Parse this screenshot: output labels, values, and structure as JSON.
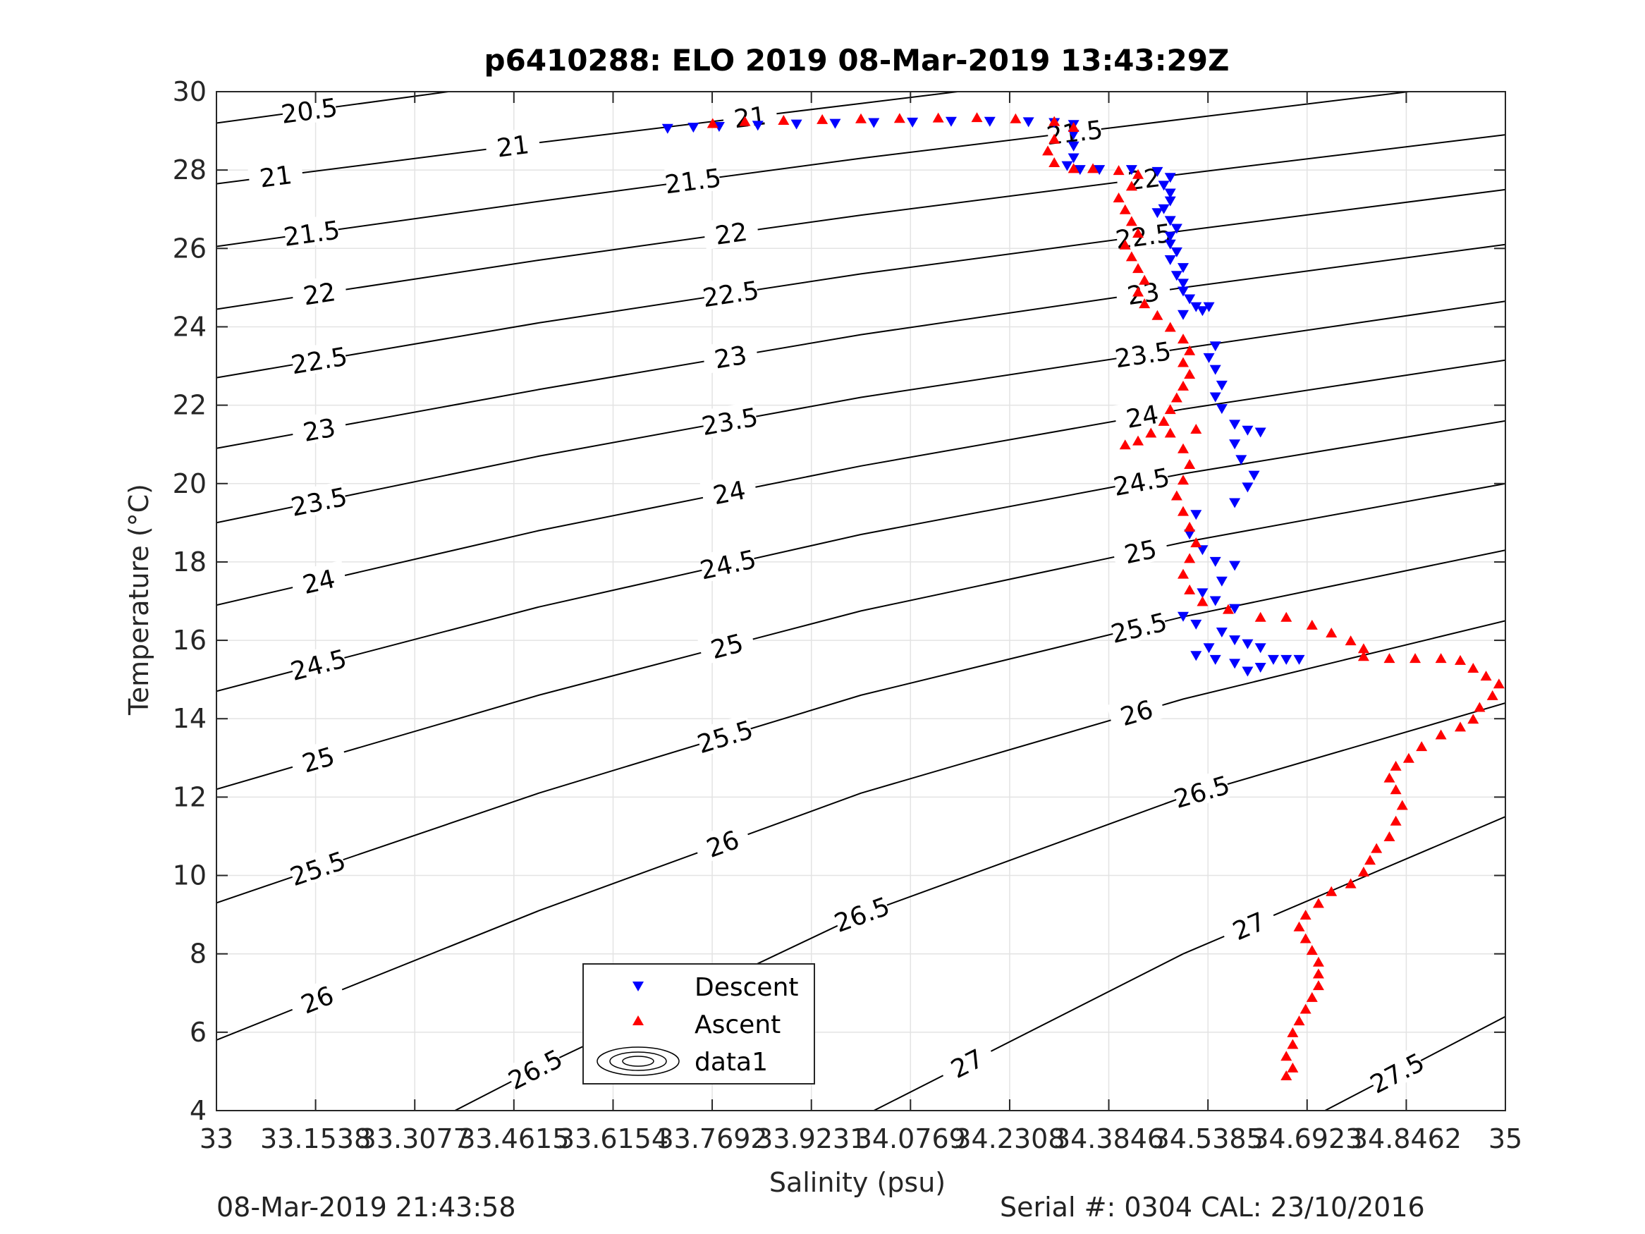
{
  "chart_data": {
    "type": "scatter",
    "title": "p6410288: ELO 2019 08-Mar-2019 13:43:29Z",
    "xlabel": "Salinity (psu)",
    "ylabel": "Temperature (°C)",
    "xlim": [
      33,
      35
    ],
    "ylim": [
      4,
      30
    ],
    "grid": true,
    "legend_position": "bottom-center",
    "x_ticks": [
      33,
      33.1538,
      33.3077,
      33.4615,
      33.6154,
      33.7692,
      33.9231,
      34.0769,
      34.2308,
      34.3846,
      34.5385,
      34.6923,
      34.8462,
      35
    ],
    "x_tick_labels": [
      "33",
      "33.1538",
      "33.3077",
      "33.4615",
      "33.6154",
      "33.7692",
      "33.9231",
      "34.0769",
      "34.2308",
      "34.3846",
      "34.5385",
      "34.6923",
      "34.8462",
      "35"
    ],
    "y_ticks": [
      4,
      6,
      8,
      10,
      12,
      14,
      16,
      18,
      20,
      22,
      24,
      26,
      28,
      30
    ],
    "y_tick_labels": [
      "4",
      "6",
      "8",
      "10",
      "12",
      "14",
      "16",
      "18",
      "20",
      "22",
      "24",
      "26",
      "28",
      "30"
    ],
    "legend": [
      {
        "label": "Descent",
        "marker": "triangle-down",
        "color": "#0000ff"
      },
      {
        "label": "Ascent",
        "marker": "triangle-up",
        "color": "#ff0000"
      },
      {
        "label": "data1",
        "marker": "contour",
        "color": "#000000"
      }
    ],
    "contour_levels": [
      {
        "label": "20.5",
        "points": [
          [
            33,
            29.2
          ],
          [
            33.36,
            30
          ]
        ]
      },
      {
        "label": "21",
        "points": [
          [
            33,
            27.65
          ],
          [
            33.5,
            28.7
          ],
          [
            34,
            29.7
          ],
          [
            34.15,
            30
          ]
        ]
      },
      {
        "label": "21.5",
        "points": [
          [
            33,
            26.05
          ],
          [
            33.5,
            27.2
          ],
          [
            34,
            28.3
          ],
          [
            34.5,
            29.3
          ],
          [
            34.85,
            30
          ]
        ]
      },
      {
        "label": "22",
        "points": [
          [
            33,
            24.45
          ],
          [
            33.5,
            25.7
          ],
          [
            34,
            26.85
          ],
          [
            34.5,
            27.9
          ],
          [
            35,
            28.9
          ]
        ]
      },
      {
        "label": "22.5",
        "points": [
          [
            33,
            22.7
          ],
          [
            33.5,
            24.1
          ],
          [
            34,
            25.35
          ],
          [
            34.5,
            26.45
          ],
          [
            35,
            27.5
          ]
        ]
      },
      {
        "label": "23",
        "points": [
          [
            33,
            20.9
          ],
          [
            33.5,
            22.4
          ],
          [
            34,
            23.8
          ],
          [
            34.5,
            25.0
          ],
          [
            35,
            26.1
          ]
        ]
      },
      {
        "label": "23.5",
        "points": [
          [
            33,
            19.0
          ],
          [
            33.5,
            20.7
          ],
          [
            34,
            22.2
          ],
          [
            34.5,
            23.45
          ],
          [
            35,
            24.65
          ]
        ]
      },
      {
        "label": "24",
        "points": [
          [
            33,
            16.9
          ],
          [
            33.5,
            18.8
          ],
          [
            34,
            20.45
          ],
          [
            34.5,
            21.9
          ],
          [
            35,
            23.15
          ]
        ]
      },
      {
        "label": "24.5",
        "points": [
          [
            33,
            14.7
          ],
          [
            33.5,
            16.85
          ],
          [
            34,
            18.7
          ],
          [
            34.5,
            20.25
          ],
          [
            35,
            21.6
          ]
        ]
      },
      {
        "label": "25",
        "points": [
          [
            33,
            12.2
          ],
          [
            33.5,
            14.6
          ],
          [
            34,
            16.75
          ],
          [
            34.5,
            18.5
          ],
          [
            35,
            20.0
          ]
        ]
      },
      {
        "label": "25.5",
        "points": [
          [
            33,
            9.3
          ],
          [
            33.5,
            12.1
          ],
          [
            34,
            14.6
          ],
          [
            34.5,
            16.6
          ],
          [
            35,
            18.3
          ]
        ]
      },
      {
        "label": "26",
        "points": [
          [
            33,
            5.8
          ],
          [
            33.5,
            9.1
          ],
          [
            34,
            12.1
          ],
          [
            34.5,
            14.5
          ],
          [
            35,
            16.5
          ]
        ]
      },
      {
        "label": "26.5",
        "points": [
          [
            33.37,
            4
          ],
          [
            33.5,
            5.1
          ],
          [
            34,
            9.0
          ],
          [
            34.5,
            12.0
          ],
          [
            35,
            14.4
          ]
        ]
      },
      {
        "label": "27",
        "points": [
          [
            34.02,
            4
          ],
          [
            34.5,
            8.0
          ],
          [
            35,
            11.5
          ]
        ]
      },
      {
        "label": "27.5",
        "points": [
          [
            34.72,
            4
          ],
          [
            35,
            6.4
          ]
        ]
      }
    ],
    "series": [
      {
        "name": "Descent",
        "marker": "triangle-down",
        "color": "#0000ff",
        "points": [
          [
            33.7,
            29.05
          ],
          [
            33.74,
            29.08
          ],
          [
            33.78,
            29.1
          ],
          [
            33.84,
            29.13
          ],
          [
            33.9,
            29.16
          ],
          [
            33.96,
            29.18
          ],
          [
            34.02,
            29.2
          ],
          [
            34.08,
            29.21
          ],
          [
            34.14,
            29.23
          ],
          [
            34.2,
            29.23
          ],
          [
            34.26,
            29.22
          ],
          [
            34.3,
            29.2
          ],
          [
            34.33,
            29.15
          ],
          [
            34.33,
            28.9
          ],
          [
            34.33,
            28.6
          ],
          [
            34.33,
            28.3
          ],
          [
            34.32,
            28.1
          ],
          [
            34.34,
            28.0
          ],
          [
            34.37,
            28.0
          ],
          [
            34.42,
            28.0
          ],
          [
            34.46,
            27.95
          ],
          [
            34.48,
            27.8
          ],
          [
            34.47,
            27.6
          ],
          [
            34.48,
            27.4
          ],
          [
            34.48,
            27.2
          ],
          [
            34.47,
            27.0
          ],
          [
            34.46,
            26.9
          ],
          [
            34.48,
            26.7
          ],
          [
            34.49,
            26.5
          ],
          [
            34.48,
            26.3
          ],
          [
            34.48,
            26.1
          ],
          [
            34.49,
            25.9
          ],
          [
            34.48,
            25.7
          ],
          [
            34.5,
            25.5
          ],
          [
            34.49,
            25.3
          ],
          [
            34.5,
            25.1
          ],
          [
            34.5,
            24.9
          ],
          [
            34.51,
            24.7
          ],
          [
            34.52,
            24.5
          ],
          [
            34.5,
            24.3
          ],
          [
            34.53,
            24.4
          ],
          [
            34.54,
            24.5
          ],
          [
            34.55,
            23.5
          ],
          [
            34.54,
            23.2
          ],
          [
            34.55,
            22.9
          ],
          [
            34.56,
            22.5
          ],
          [
            34.55,
            22.2
          ],
          [
            34.56,
            21.9
          ],
          [
            34.58,
            21.5
          ],
          [
            34.6,
            21.35
          ],
          [
            34.62,
            21.3
          ],
          [
            34.58,
            21.0
          ],
          [
            34.59,
            20.6
          ],
          [
            34.61,
            20.2
          ],
          [
            34.6,
            19.9
          ],
          [
            34.58,
            19.5
          ],
          [
            34.52,
            19.2
          ],
          [
            34.51,
            18.7
          ],
          [
            34.53,
            18.3
          ],
          [
            34.55,
            18.0
          ],
          [
            34.58,
            17.9
          ],
          [
            34.56,
            17.5
          ],
          [
            34.53,
            17.2
          ],
          [
            34.55,
            17.0
          ],
          [
            34.58,
            16.8
          ],
          [
            34.5,
            16.6
          ],
          [
            34.52,
            16.4
          ],
          [
            34.56,
            16.2
          ],
          [
            34.58,
            16.0
          ],
          [
            34.6,
            15.9
          ],
          [
            34.62,
            15.8
          ],
          [
            34.54,
            15.8
          ],
          [
            34.52,
            15.6
          ],
          [
            34.55,
            15.5
          ],
          [
            34.58,
            15.4
          ],
          [
            34.6,
            15.2
          ],
          [
            34.62,
            15.3
          ],
          [
            34.64,
            15.5
          ],
          [
            34.66,
            15.5
          ],
          [
            34.68,
            15.5
          ]
        ]
      },
      {
        "name": "Ascent",
        "marker": "triangle-up",
        "color": "#ff0000",
        "points": [
          [
            33.77,
            29.2
          ],
          [
            33.82,
            29.25
          ],
          [
            33.88,
            29.28
          ],
          [
            33.94,
            29.3
          ],
          [
            34.0,
            29.32
          ],
          [
            34.06,
            29.33
          ],
          [
            34.12,
            29.34
          ],
          [
            34.18,
            29.35
          ],
          [
            34.24,
            29.32
          ],
          [
            34.3,
            29.25
          ],
          [
            34.33,
            29.1
          ],
          [
            34.3,
            28.8
          ],
          [
            34.29,
            28.5
          ],
          [
            34.3,
            28.2
          ],
          [
            34.33,
            28.05
          ],
          [
            34.36,
            28.05
          ],
          [
            34.4,
            28.0
          ],
          [
            34.43,
            27.9
          ],
          [
            34.42,
            27.6
          ],
          [
            34.4,
            27.3
          ],
          [
            34.41,
            27.0
          ],
          [
            34.42,
            26.7
          ],
          [
            34.43,
            26.4
          ],
          [
            34.41,
            26.1
          ],
          [
            34.42,
            25.8
          ],
          [
            34.43,
            25.5
          ],
          [
            34.44,
            25.2
          ],
          [
            34.43,
            24.9
          ],
          [
            34.44,
            24.6
          ],
          [
            34.46,
            24.3
          ],
          [
            34.48,
            24.0
          ],
          [
            34.5,
            23.7
          ],
          [
            34.51,
            23.4
          ],
          [
            34.5,
            23.1
          ],
          [
            34.51,
            22.8
          ],
          [
            34.5,
            22.5
          ],
          [
            34.49,
            22.2
          ],
          [
            34.48,
            21.9
          ],
          [
            34.47,
            21.6
          ],
          [
            34.45,
            21.3
          ],
          [
            34.43,
            21.1
          ],
          [
            34.41,
            21.0
          ],
          [
            34.48,
            21.3
          ],
          [
            34.52,
            21.4
          ],
          [
            34.5,
            20.9
          ],
          [
            34.51,
            20.5
          ],
          [
            34.5,
            20.1
          ],
          [
            34.49,
            19.7
          ],
          [
            34.5,
            19.3
          ],
          [
            34.51,
            18.9
          ],
          [
            34.52,
            18.5
          ],
          [
            34.51,
            18.1
          ],
          [
            34.5,
            17.7
          ],
          [
            34.51,
            17.3
          ],
          [
            34.53,
            17.0
          ],
          [
            34.57,
            16.8
          ],
          [
            34.62,
            16.6
          ],
          [
            34.66,
            16.6
          ],
          [
            34.7,
            16.4
          ],
          [
            34.73,
            16.2
          ],
          [
            34.76,
            16.0
          ],
          [
            34.78,
            15.8
          ],
          [
            34.78,
            15.6
          ],
          [
            34.82,
            15.55
          ],
          [
            34.86,
            15.55
          ],
          [
            34.9,
            15.55
          ],
          [
            34.93,
            15.5
          ],
          [
            34.95,
            15.3
          ],
          [
            34.97,
            15.1
          ],
          [
            34.99,
            14.9
          ],
          [
            34.98,
            14.6
          ],
          [
            34.96,
            14.3
          ],
          [
            34.95,
            14.0
          ],
          [
            34.93,
            13.8
          ],
          [
            34.9,
            13.6
          ],
          [
            34.87,
            13.3
          ],
          [
            34.85,
            13.0
          ],
          [
            34.83,
            12.8
          ],
          [
            34.82,
            12.5
          ],
          [
            34.83,
            12.2
          ],
          [
            34.84,
            11.8
          ],
          [
            34.83,
            11.4
          ],
          [
            34.82,
            11.0
          ],
          [
            34.8,
            10.7
          ],
          [
            34.79,
            10.4
          ],
          [
            34.78,
            10.1
          ],
          [
            34.76,
            9.8
          ],
          [
            34.73,
            9.6
          ],
          [
            34.71,
            9.3
          ],
          [
            34.69,
            9.0
          ],
          [
            34.68,
            8.7
          ],
          [
            34.69,
            8.4
          ],
          [
            34.7,
            8.1
          ],
          [
            34.71,
            7.8
          ],
          [
            34.71,
            7.5
          ],
          [
            34.71,
            7.2
          ],
          [
            34.7,
            6.9
          ],
          [
            34.69,
            6.6
          ],
          [
            34.68,
            6.3
          ],
          [
            34.67,
            6.0
          ],
          [
            34.67,
            5.7
          ],
          [
            34.66,
            5.4
          ],
          [
            34.67,
            5.1
          ],
          [
            34.66,
            4.9
          ]
        ]
      }
    ]
  },
  "footer": {
    "left": "08-Mar-2019 21:43:58",
    "right": "Serial #: 0304  CAL: 23/10/2016"
  }
}
